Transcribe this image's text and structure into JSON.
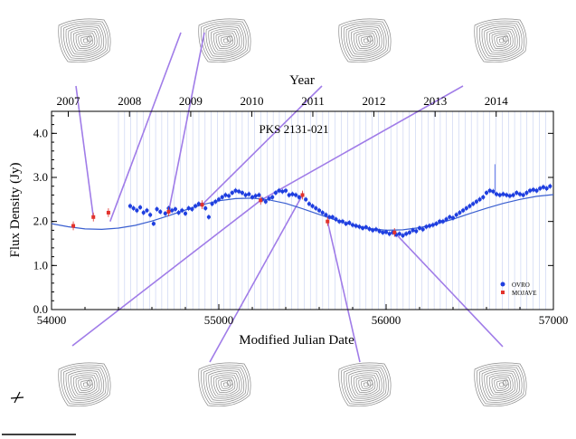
{
  "chart_data": {
    "type": "scatter",
    "title": "PKS 2131-021",
    "xlabel": "Modified Julian Date",
    "ylabel": "Flux Density (Jy)",
    "top_axis_label": "Year",
    "xlim": [
      54000,
      57000
    ],
    "ylim": [
      0.0,
      4.5
    ],
    "x_ticks": [
      "54000",
      "55000",
      "56000",
      "57000"
    ],
    "y_ticks": [
      "0.0",
      "1.0",
      "2.0",
      "3.0",
      "4.0"
    ],
    "year_ticks": [
      {
        "label": "2007",
        "mjd": 54100
      },
      {
        "label": "2008",
        "mjd": 54466
      },
      {
        "label": "2009",
        "mjd": 54832
      },
      {
        "label": "2010",
        "mjd": 55197
      },
      {
        "label": "2011",
        "mjd": 55562
      },
      {
        "label": "2012",
        "mjd": 55927
      },
      {
        "label": "2013",
        "mjd": 56293
      },
      {
        "label": "2014",
        "mjd": 56658
      }
    ],
    "legend": {
      "position": "lower-right",
      "entries": [
        "OVRO",
        "MOJAVE"
      ]
    },
    "colors": {
      "ovro": "#1f3fe0",
      "mojave": "#e2322c",
      "fit": "#3a5fd0",
      "connector": "#a07ce8",
      "gridline": "#b8c4ee",
      "contour": "#8a8a8a"
    },
    "series": [
      {
        "name": "OVRO",
        "marker": "circle",
        "points": [
          [
            54470,
            2.35
          ],
          [
            54490,
            2.3
          ],
          [
            54510,
            2.25
          ],
          [
            54530,
            2.32
          ],
          [
            54550,
            2.2
          ],
          [
            54570,
            2.25
          ],
          [
            54590,
            2.15
          ],
          [
            54610,
            1.95
          ],
          [
            54630,
            2.28
          ],
          [
            54650,
            2.22
          ],
          [
            54680,
            2.18
          ],
          [
            54700,
            2.3
          ],
          [
            54720,
            2.25
          ],
          [
            54740,
            2.28
          ],
          [
            54760,
            2.2
          ],
          [
            54780,
            2.25
          ],
          [
            54800,
            2.18
          ],
          [
            54820,
            2.3
          ],
          [
            54840,
            2.28
          ],
          [
            54860,
            2.35
          ],
          [
            54880,
            2.4
          ],
          [
            54900,
            2.38
          ],
          [
            54920,
            2.3
          ],
          [
            54940,
            2.1
          ],
          [
            54960,
            2.4
          ],
          [
            54980,
            2.45
          ],
          [
            55000,
            2.5
          ],
          [
            55020,
            2.55
          ],
          [
            55040,
            2.6
          ],
          [
            55060,
            2.58
          ],
          [
            55080,
            2.65
          ],
          [
            55100,
            2.7
          ],
          [
            55120,
            2.68
          ],
          [
            55140,
            2.65
          ],
          [
            55160,
            2.6
          ],
          [
            55180,
            2.62
          ],
          [
            55200,
            2.55
          ],
          [
            55220,
            2.58
          ],
          [
            55240,
            2.6
          ],
          [
            55260,
            2.5
          ],
          [
            55280,
            2.45
          ],
          [
            55300,
            2.52
          ],
          [
            55320,
            2.55
          ],
          [
            55340,
            2.65
          ],
          [
            55360,
            2.7
          ],
          [
            55380,
            2.68
          ],
          [
            55400,
            2.7
          ],
          [
            55420,
            2.6
          ],
          [
            55440,
            2.62
          ],
          [
            55460,
            2.6
          ],
          [
            55480,
            2.55
          ],
          [
            55500,
            2.6
          ],
          [
            55520,
            2.5
          ],
          [
            55540,
            2.4
          ],
          [
            55560,
            2.35
          ],
          [
            55580,
            2.3
          ],
          [
            55600,
            2.25
          ],
          [
            55620,
            2.2
          ],
          [
            55640,
            2.15
          ],
          [
            55660,
            2.1
          ],
          [
            55680,
            2.1
          ],
          [
            55700,
            2.05
          ],
          [
            55720,
            2.0
          ],
          [
            55740,
            2.0
          ],
          [
            55760,
            1.95
          ],
          [
            55780,
            1.97
          ],
          [
            55800,
            1.92
          ],
          [
            55820,
            1.9
          ],
          [
            55840,
            1.88
          ],
          [
            55860,
            1.85
          ],
          [
            55880,
            1.87
          ],
          [
            55900,
            1.83
          ],
          [
            55920,
            1.8
          ],
          [
            55940,
            1.82
          ],
          [
            55960,
            1.78
          ],
          [
            55980,
            1.75
          ],
          [
            56000,
            1.76
          ],
          [
            56020,
            1.72
          ],
          [
            56040,
            1.75
          ],
          [
            56060,
            1.7
          ],
          [
            56080,
            1.72
          ],
          [
            56100,
            1.68
          ],
          [
            56120,
            1.72
          ],
          [
            56140,
            1.75
          ],
          [
            56160,
            1.8
          ],
          [
            56180,
            1.78
          ],
          [
            56200,
            1.85
          ],
          [
            56220,
            1.82
          ],
          [
            56240,
            1.88
          ],
          [
            56260,
            1.9
          ],
          [
            56280,
            1.92
          ],
          [
            56300,
            1.95
          ],
          [
            56320,
            2.0
          ],
          [
            56340,
            2.0
          ],
          [
            56360,
            2.05
          ],
          [
            56380,
            2.1
          ],
          [
            56400,
            2.08
          ],
          [
            56420,
            2.15
          ],
          [
            56440,
            2.2
          ],
          [
            56460,
            2.25
          ],
          [
            56480,
            2.3
          ],
          [
            56500,
            2.35
          ],
          [
            56520,
            2.4
          ],
          [
            56540,
            2.45
          ],
          [
            56560,
            2.5
          ],
          [
            56580,
            2.55
          ],
          [
            56600,
            2.65
          ],
          [
            56620,
            2.7
          ],
          [
            56640,
            2.68
          ],
          [
            56660,
            2.62
          ],
          [
            56680,
            2.6
          ],
          [
            56700,
            2.62
          ],
          [
            56720,
            2.6
          ],
          [
            56740,
            2.58
          ],
          [
            56760,
            2.6
          ],
          [
            56780,
            2.65
          ],
          [
            56800,
            2.62
          ],
          [
            56820,
            2.6
          ],
          [
            56840,
            2.65
          ],
          [
            56860,
            2.7
          ],
          [
            56880,
            2.72
          ],
          [
            56900,
            2.7
          ],
          [
            56920,
            2.75
          ],
          [
            56940,
            2.78
          ],
          [
            56960,
            2.75
          ],
          [
            56980,
            2.8
          ]
        ]
      },
      {
        "name": "MOJAVE",
        "marker": "square",
        "points": [
          [
            54130,
            1.9
          ],
          [
            54250,
            2.1
          ],
          [
            54340,
            2.2
          ],
          [
            54700,
            2.22
          ],
          [
            54900,
            2.38
          ],
          [
            55250,
            2.48
          ],
          [
            55500,
            2.6
          ],
          [
            55650,
            2.0
          ],
          [
            56050,
            1.75
          ]
        ]
      }
    ],
    "fit_curve": {
      "x": [
        54000,
        54100,
        54200,
        54300,
        54400,
        54500,
        54600,
        54700,
        54800,
        54900,
        55000,
        55100,
        55200,
        55300,
        55400,
        55500,
        55600,
        55700,
        55800,
        55900,
        56000,
        56100,
        56200,
        56300,
        56400,
        56500,
        56600,
        56700,
        56800,
        56900,
        57000
      ],
      "y": [
        1.95,
        1.88,
        1.83,
        1.82,
        1.85,
        1.91,
        2.01,
        2.13,
        2.26,
        2.38,
        2.47,
        2.52,
        2.53,
        2.49,
        2.41,
        2.29,
        2.16,
        2.03,
        1.92,
        1.84,
        1.8,
        1.81,
        1.86,
        1.94,
        2.05,
        2.18,
        2.3,
        2.41,
        2.5,
        2.57,
        2.61
      ]
    },
    "map_links": [
      {
        "map": "map-top-1",
        "mjd": 54250,
        "flux": 2.1
      },
      {
        "map": "map-top-2",
        "mjd": 54700,
        "flux": 2.22
      },
      {
        "map": "map-top-3",
        "mjd": 54900,
        "flux": 2.38
      },
      {
        "map": "map-top-4",
        "mjd": 55250,
        "flux": 2.48
      },
      {
        "map": "map-bottom-1",
        "mjd": 55250,
        "flux": 2.48
      },
      {
        "map": "map-bottom-2",
        "mjd": 55500,
        "flux": 2.6
      },
      {
        "map": "map-bottom-3",
        "mjd": 55650,
        "flux": 2.0
      },
      {
        "map": "map-bottom-4",
        "mjd": 56050,
        "flux": 1.75
      }
    ]
  }
}
